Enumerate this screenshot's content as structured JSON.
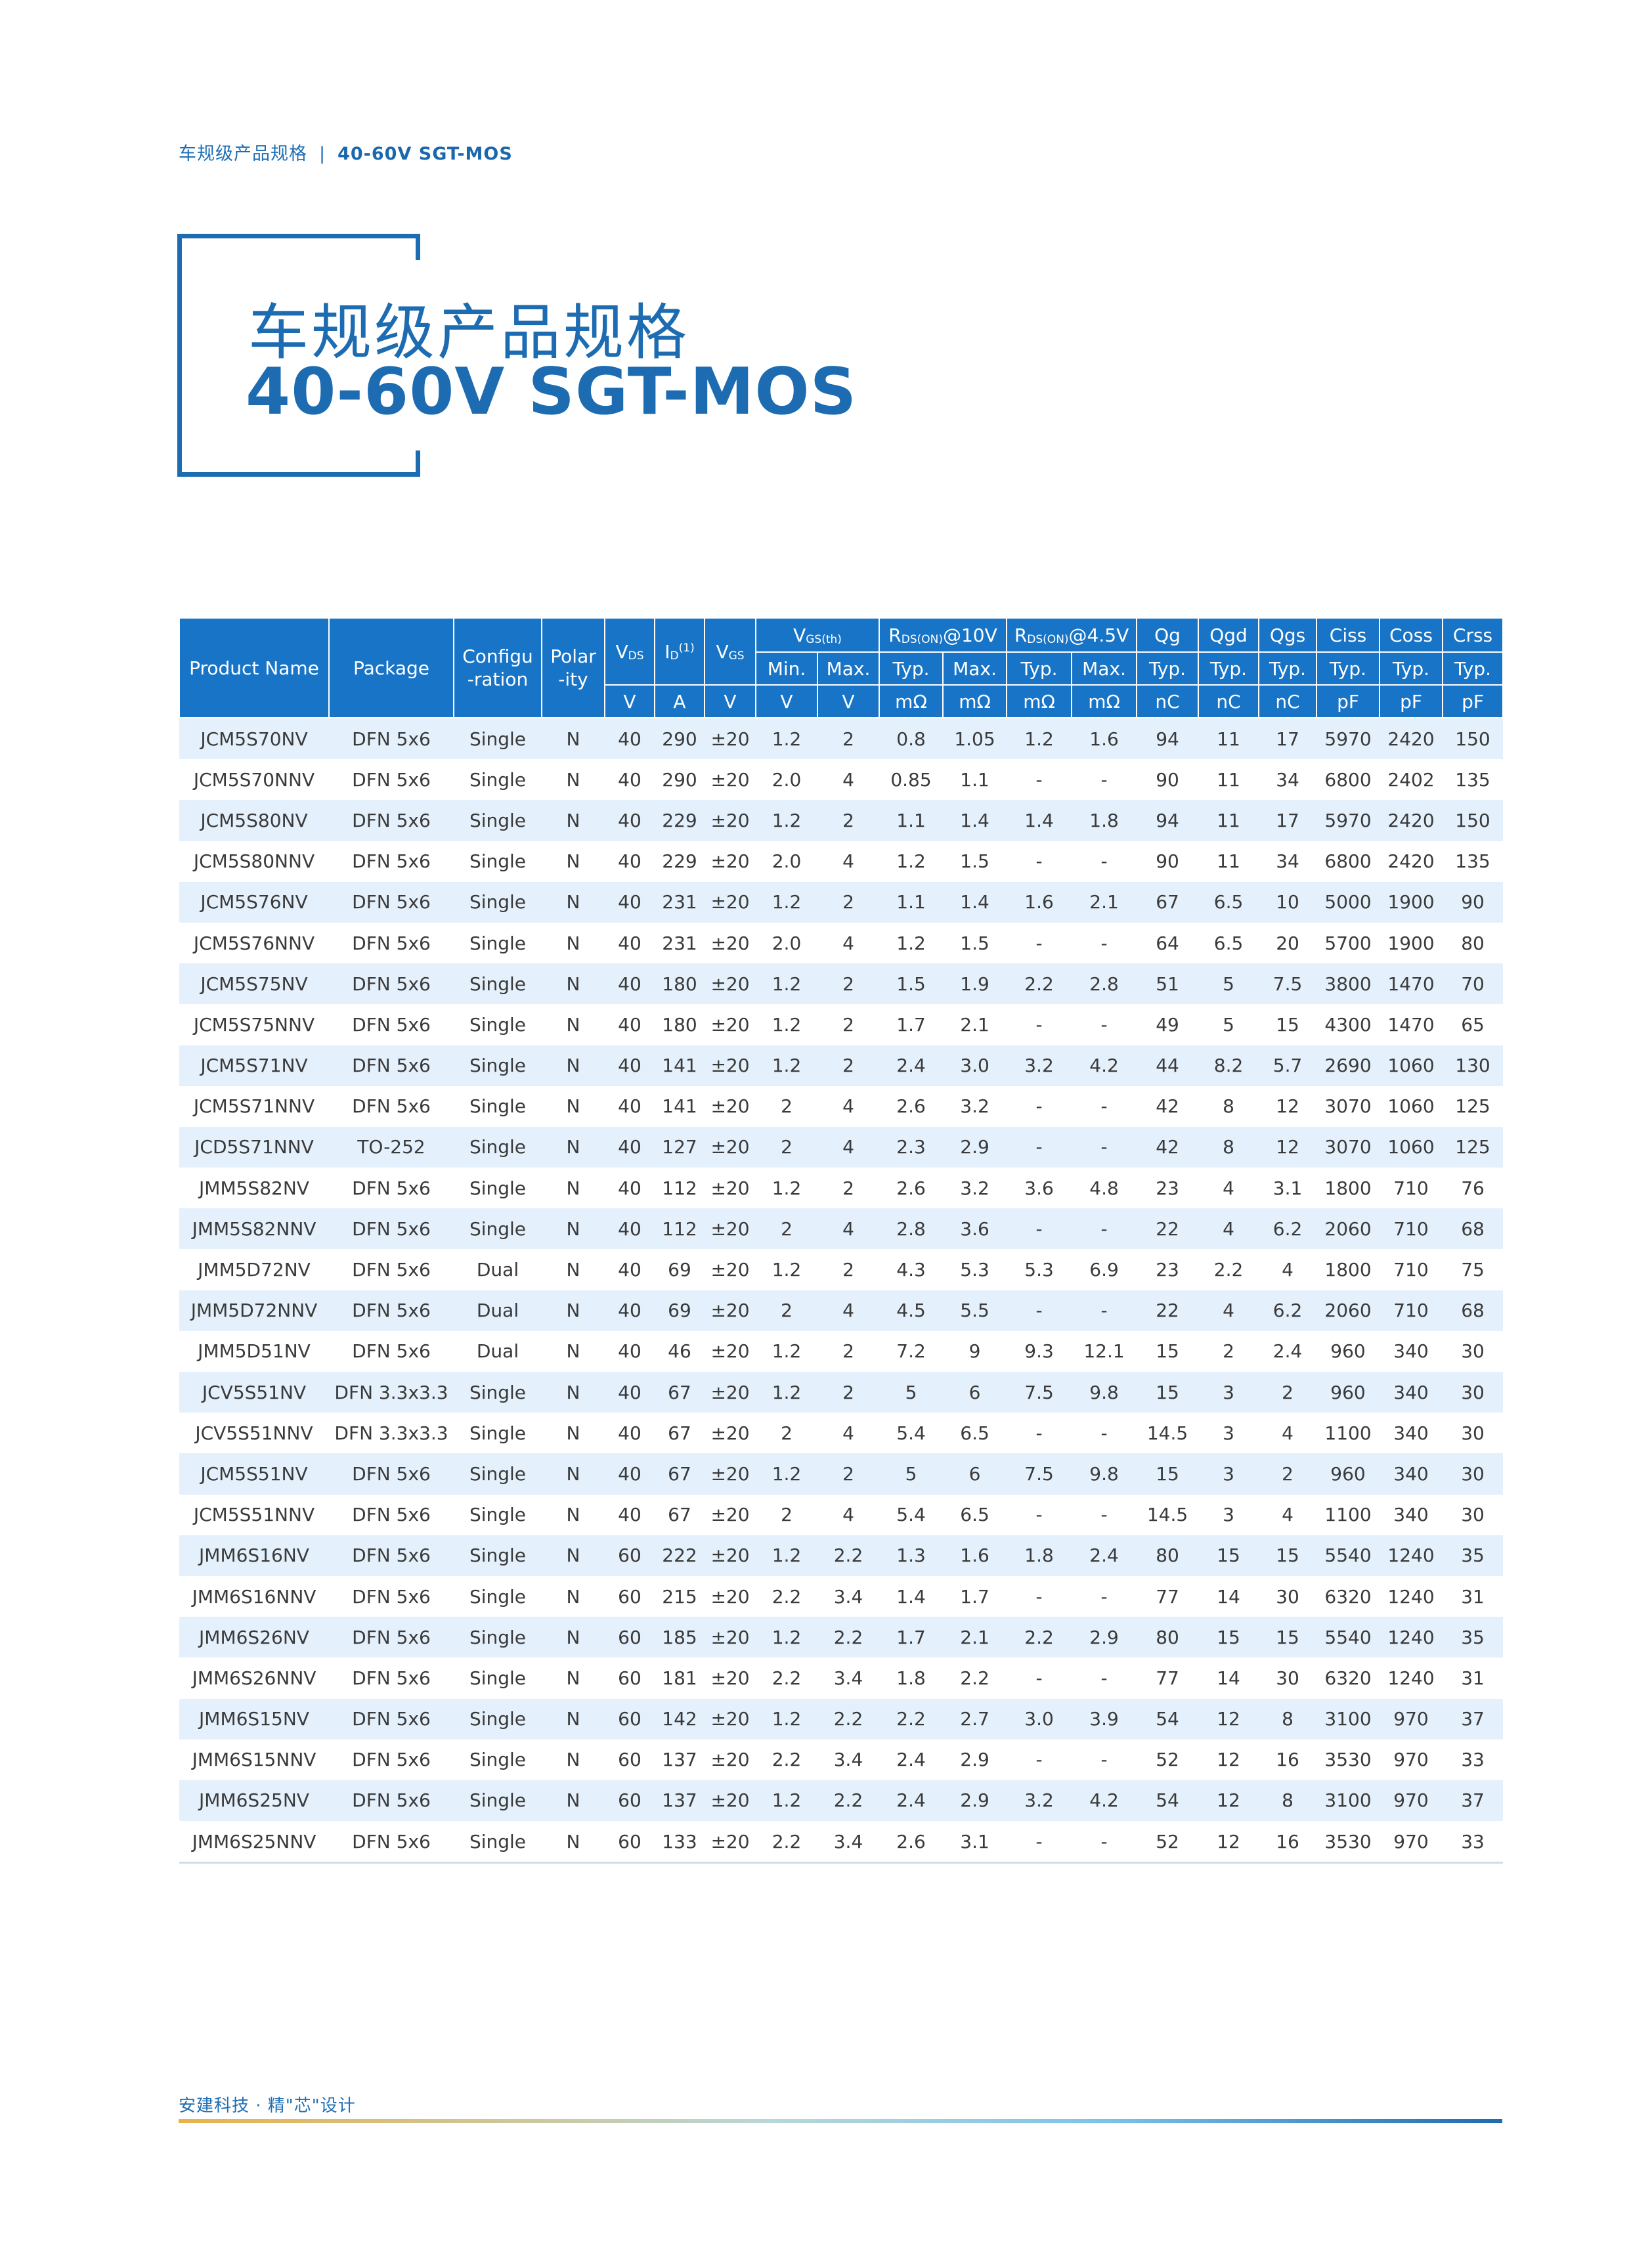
{
  "header": {
    "section_cn": "车规级产品规格",
    "separator": "|",
    "section_en": "40-60V SGT-MOS"
  },
  "title": {
    "cn": "车规级产品规格",
    "en": "40-60V SGT-MOS"
  },
  "table": {
    "headers": {
      "product_name": "Product Name",
      "package": "Package",
      "configuration": "Configu\n-ration",
      "polarity": "Polar\n-ity",
      "vds": "V",
      "vds_sub": "DS",
      "id": "I",
      "id_sub": "D",
      "id_sup": "(1)",
      "vgs": "V",
      "vgs_sub": "GS",
      "vgsth": "V",
      "vgsth_sub": "GS(th)",
      "rds10": "R",
      "rds10_sub": "DS(ON)",
      "rds10_tail": "@10V",
      "rds45": "R",
      "rds45_sub": "DS(ON)",
      "rds45_tail": "@4.5V",
      "qg": "Qg",
      "qgd": "Qgd",
      "qgs": "Qgs",
      "ciss": "Ciss",
      "coss": "Coss",
      "crss": "Crss"
    },
    "subheaders": [
      "Min.",
      "Max.",
      "Typ.",
      "Max.",
      "Typ.",
      "Max.",
      "Typ.",
      "Typ.",
      "Typ.",
      "Typ.",
      "Typ.",
      "Typ."
    ],
    "units": [
      "V",
      "A",
      "V",
      "V",
      "V",
      "mΩ",
      "mΩ",
      "mΩ",
      "mΩ",
      "nC",
      "nC",
      "nC",
      "pF",
      "pF",
      "pF"
    ],
    "rows": [
      [
        "JCM5S70NV",
        "DFN 5x6",
        "Single",
        "N",
        "40",
        "290",
        "±20",
        "1.2",
        "2",
        "0.8",
        "1.05",
        "1.2",
        "1.6",
        "94",
        "11",
        "17",
        "5970",
        "2420",
        "150"
      ],
      [
        "JCM5S70NNV",
        "DFN 5x6",
        "Single",
        "N",
        "40",
        "290",
        "±20",
        "2.0",
        "4",
        "0.85",
        "1.1",
        "-",
        "-",
        "90",
        "11",
        "34",
        "6800",
        "2402",
        "135"
      ],
      [
        "JCM5S80NV",
        "DFN 5x6",
        "Single",
        "N",
        "40",
        "229",
        "±20",
        "1.2",
        "2",
        "1.1",
        "1.4",
        "1.4",
        "1.8",
        "94",
        "11",
        "17",
        "5970",
        "2420",
        "150"
      ],
      [
        "JCM5S80NNV",
        "DFN 5x6",
        "Single",
        "N",
        "40",
        "229",
        "±20",
        "2.0",
        "4",
        "1.2",
        "1.5",
        "-",
        "-",
        "90",
        "11",
        "34",
        "6800",
        "2420",
        "135"
      ],
      [
        "JCM5S76NV",
        "DFN 5x6",
        "Single",
        "N",
        "40",
        "231",
        "±20",
        "1.2",
        "2",
        "1.1",
        "1.4",
        "1.6",
        "2.1",
        "67",
        "6.5",
        "10",
        "5000",
        "1900",
        "90"
      ],
      [
        "JCM5S76NNV",
        "DFN 5x6",
        "Single",
        "N",
        "40",
        "231",
        "±20",
        "2.0",
        "4",
        "1.2",
        "1.5",
        "-",
        "-",
        "64",
        "6.5",
        "20",
        "5700",
        "1900",
        "80"
      ],
      [
        "JCM5S75NV",
        "DFN 5x6",
        "Single",
        "N",
        "40",
        "180",
        "±20",
        "1.2",
        "2",
        "1.5",
        "1.9",
        "2.2",
        "2.8",
        "51",
        "5",
        "7.5",
        "3800",
        "1470",
        "70"
      ],
      [
        "JCM5S75NNV",
        "DFN 5x6",
        "Single",
        "N",
        "40",
        "180",
        "±20",
        "1.2",
        "2",
        "1.7",
        "2.1",
        "-",
        "-",
        "49",
        "5",
        "15",
        "4300",
        "1470",
        "65"
      ],
      [
        "JCM5S71NV",
        "DFN 5x6",
        "Single",
        "N",
        "40",
        "141",
        "±20",
        "1.2",
        "2",
        "2.4",
        "3.0",
        "3.2",
        "4.2",
        "44",
        "8.2",
        "5.7",
        "2690",
        "1060",
        "130"
      ],
      [
        "JCM5S71NNV",
        "DFN 5x6",
        "Single",
        "N",
        "40",
        "141",
        "±20",
        "2",
        "4",
        "2.6",
        "3.2",
        "-",
        "-",
        "42",
        "8",
        "12",
        "3070",
        "1060",
        "125"
      ],
      [
        "JCD5S71NNV",
        "TO-252",
        "Single",
        "N",
        "40",
        "127",
        "±20",
        "2",
        "4",
        "2.3",
        "2.9",
        "-",
        "-",
        "42",
        "8",
        "12",
        "3070",
        "1060",
        "125"
      ],
      [
        "JMM5S82NV",
        "DFN 5x6",
        "Single",
        "N",
        "40",
        "112",
        "±20",
        "1.2",
        "2",
        "2.6",
        "3.2",
        "3.6",
        "4.8",
        "23",
        "4",
        "3.1",
        "1800",
        "710",
        "76"
      ],
      [
        "JMM5S82NNV",
        "DFN 5x6",
        "Single",
        "N",
        "40",
        "112",
        "±20",
        "2",
        "4",
        "2.8",
        "3.6",
        "-",
        "-",
        "22",
        "4",
        "6.2",
        "2060",
        "710",
        "68"
      ],
      [
        "JMM5D72NV",
        "DFN 5x6",
        "Dual",
        "N",
        "40",
        "69",
        "±20",
        "1.2",
        "2",
        "4.3",
        "5.3",
        "5.3",
        "6.9",
        "23",
        "2.2",
        "4",
        "1800",
        "710",
        "75"
      ],
      [
        "JMM5D72NNV",
        "DFN 5x6",
        "Dual",
        "N",
        "40",
        "69",
        "±20",
        "2",
        "4",
        "4.5",
        "5.5",
        "-",
        "-",
        "22",
        "4",
        "6.2",
        "2060",
        "710",
        "68"
      ],
      [
        "JMM5D51NV",
        "DFN 5x6",
        "Dual",
        "N",
        "40",
        "46",
        "±20",
        "1.2",
        "2",
        "7.2",
        "9",
        "9.3",
        "12.1",
        "15",
        "2",
        "2.4",
        "960",
        "340",
        "30"
      ],
      [
        "JCV5S51NV",
        "DFN 3.3x3.3",
        "Single",
        "N",
        "40",
        "67",
        "±20",
        "1.2",
        "2",
        "5",
        "6",
        "7.5",
        "9.8",
        "15",
        "3",
        "2",
        "960",
        "340",
        "30"
      ],
      [
        "JCV5S51NNV",
        "DFN 3.3x3.3",
        "Single",
        "N",
        "40",
        "67",
        "±20",
        "2",
        "4",
        "5.4",
        "6.5",
        "-",
        "-",
        "14.5",
        "3",
        "4",
        "1100",
        "340",
        "30"
      ],
      [
        "JCM5S51NV",
        "DFN 5x6",
        "Single",
        "N",
        "40",
        "67",
        "±20",
        "1.2",
        "2",
        "5",
        "6",
        "7.5",
        "9.8",
        "15",
        "3",
        "2",
        "960",
        "340",
        "30"
      ],
      [
        "JCM5S51NNV",
        "DFN 5x6",
        "Single",
        "N",
        "40",
        "67",
        "±20",
        "2",
        "4",
        "5.4",
        "6.5",
        "-",
        "-",
        "14.5",
        "3",
        "4",
        "1100",
        "340",
        "30"
      ],
      [
        "JMM6S16NV",
        "DFN 5x6",
        "Single",
        "N",
        "60",
        "222",
        "±20",
        "1.2",
        "2.2",
        "1.3",
        "1.6",
        "1.8",
        "2.4",
        "80",
        "15",
        "15",
        "5540",
        "1240",
        "35"
      ],
      [
        "JMM6S16NNV",
        "DFN 5x6",
        "Single",
        "N",
        "60",
        "215",
        "±20",
        "2.2",
        "3.4",
        "1.4",
        "1.7",
        "-",
        "-",
        "77",
        "14",
        "30",
        "6320",
        "1240",
        "31"
      ],
      [
        "JMM6S26NV",
        "DFN 5x6",
        "Single",
        "N",
        "60",
        "185",
        "±20",
        "1.2",
        "2.2",
        "1.7",
        "2.1",
        "2.2",
        "2.9",
        "80",
        "15",
        "15",
        "5540",
        "1240",
        "35"
      ],
      [
        "JMM6S26NNV",
        "DFN 5x6",
        "Single",
        "N",
        "60",
        "181",
        "±20",
        "2.2",
        "3.4",
        "1.8",
        "2.2",
        "-",
        "-",
        "77",
        "14",
        "30",
        "6320",
        "1240",
        "31"
      ],
      [
        "JMM6S15NV",
        "DFN 5x6",
        "Single",
        "N",
        "60",
        "142",
        "±20",
        "1.2",
        "2.2",
        "2.2",
        "2.7",
        "3.0",
        "3.9",
        "54",
        "12",
        "8",
        "3100",
        "970",
        "37"
      ],
      [
        "JMM6S15NNV",
        "DFN 5x6",
        "Single",
        "N",
        "60",
        "137",
        "±20",
        "2.2",
        "3.4",
        "2.4",
        "2.9",
        "-",
        "-",
        "52",
        "12",
        "16",
        "3530",
        "970",
        "33"
      ],
      [
        "JMM6S25NV",
        "DFN 5x6",
        "Single",
        "N",
        "60",
        "137",
        "±20",
        "1.2",
        "2.2",
        "2.4",
        "2.9",
        "3.2",
        "4.2",
        "54",
        "12",
        "8",
        "3100",
        "970",
        "37"
      ],
      [
        "JMM6S25NNV",
        "DFN 5x6",
        "Single",
        "N",
        "60",
        "133",
        "±20",
        "2.2",
        "3.4",
        "2.6",
        "3.1",
        "-",
        "-",
        "52",
        "12",
        "16",
        "3530",
        "970",
        "33"
      ]
    ]
  },
  "footer": {
    "slogan": "安建科技 · 精\"芯\"设计"
  },
  "colors": {
    "brand_blue": "#1d6cb2",
    "header_fill": "#1874c6",
    "row_stripe": "#e4f0fb"
  }
}
